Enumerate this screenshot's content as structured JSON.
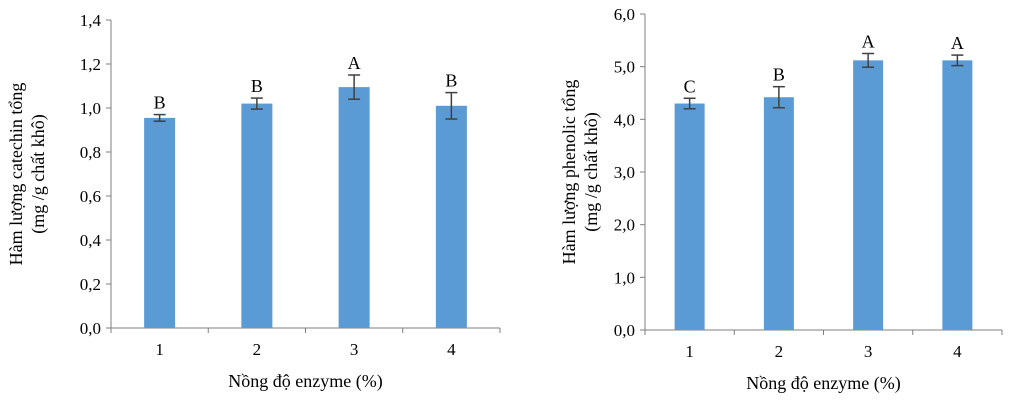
{
  "chart_data": [
    {
      "type": "bar",
      "categories": [
        "1",
        "2",
        "3",
        "4"
      ],
      "values": [
        0.955,
        1.02,
        1.095,
        1.01
      ],
      "errors": [
        0.015,
        0.025,
        0.055,
        0.06
      ],
      "labels": [
        "B",
        "B",
        "A",
        "B"
      ],
      "xlabel": "Nồng độ enzyme (%)",
      "ylabel_lines": [
        "Hàm lượng catechin tổng",
        "(mg /g chất khô)"
      ],
      "ylim": [
        0,
        1.4
      ],
      "yticks": [
        0,
        0.2,
        0.4,
        0.6,
        0.8,
        1.0,
        1.2,
        1.4
      ],
      "ytick_labels": [
        "0,0",
        "0,2",
        "0,4",
        "0,6",
        "0,8",
        "1,0",
        "1,2",
        "1,4"
      ],
      "bar_color": "#5b9bd5",
      "grid": false
    },
    {
      "type": "bar",
      "categories": [
        "1",
        "2",
        "3",
        "4"
      ],
      "values": [
        4.3,
        4.42,
        5.12,
        5.12
      ],
      "errors": [
        0.1,
        0.2,
        0.13,
        0.1
      ],
      "labels": [
        "C",
        "B",
        "A",
        "A"
      ],
      "xlabel": "Nồng độ enzyme (%)",
      "ylabel_lines": [
        "Hàm lượng phenolic tổng",
        "(mg /g chất khô)"
      ],
      "ylim": [
        0,
        6
      ],
      "yticks": [
        0,
        1,
        2,
        3,
        4,
        5,
        6
      ],
      "ytick_labels": [
        "0,0",
        "1,0",
        "2,0",
        "3,0",
        "4,0",
        "5,0",
        "6,0"
      ],
      "bar_color": "#5b9bd5",
      "grid": false
    }
  ]
}
